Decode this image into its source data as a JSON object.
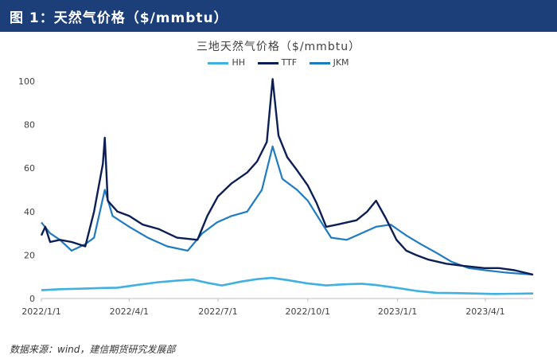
{
  "header": {
    "title": "图 1：天然气价格（$/mmbtu）"
  },
  "footer": {
    "source": "数据来源：wind，建信期货研究发展部"
  },
  "colors": {
    "header_bg": "#1d3f79",
    "HH": "#3fb0e0",
    "TTF": "#0c1f55",
    "JKM": "#1f7bc0"
  },
  "chart_data": {
    "type": "line",
    "title": "三地天然气价格（$/mmbtu）",
    "xlabel": "",
    "ylabel": "",
    "ylim": [
      0,
      100
    ],
    "yticks": [
      0,
      20,
      40,
      60,
      80,
      100
    ],
    "xlim": [
      "2022-01-01",
      "2023-05-20"
    ],
    "xticks": [
      "2022/1/1",
      "2022/4/1",
      "2022/7/1",
      "2022/10/1",
      "2023/1/1",
      "2023/4/1"
    ],
    "grid": false,
    "legend_position": "top-center",
    "series": [
      {
        "name": "HH",
        "points": [
          [
            "2022-01-01",
            3.8
          ],
          [
            "2022-01-20",
            4.3
          ],
          [
            "2022-02-10",
            4.5
          ],
          [
            "2022-03-01",
            4.8
          ],
          [
            "2022-03-20",
            5.0
          ],
          [
            "2022-04-10",
            6.3
          ],
          [
            "2022-05-01",
            7.5
          ],
          [
            "2022-05-20",
            8.2
          ],
          [
            "2022-06-05",
            8.7
          ],
          [
            "2022-06-20",
            7.2
          ],
          [
            "2022-07-05",
            6.0
          ],
          [
            "2022-07-25",
            7.8
          ],
          [
            "2022-08-10",
            8.9
          ],
          [
            "2022-08-25",
            9.5
          ],
          [
            "2022-09-10",
            8.5
          ],
          [
            "2022-09-30",
            7.0
          ],
          [
            "2022-10-20",
            6.0
          ],
          [
            "2022-11-05",
            6.5
          ],
          [
            "2022-11-25",
            6.8
          ],
          [
            "2022-12-10",
            6.2
          ],
          [
            "2022-12-30",
            5.0
          ],
          [
            "2023-01-20",
            3.5
          ],
          [
            "2023-02-10",
            2.6
          ],
          [
            "2023-03-01",
            2.5
          ],
          [
            "2023-03-20",
            2.3
          ],
          [
            "2023-04-10",
            2.1
          ],
          [
            "2023-05-01",
            2.2
          ],
          [
            "2023-05-20",
            2.3
          ]
        ]
      },
      {
        "name": "TTF",
        "points": [
          [
            "2022-01-01",
            29
          ],
          [
            "2022-01-05",
            33
          ],
          [
            "2022-01-10",
            26
          ],
          [
            "2022-01-20",
            27
          ],
          [
            "2022-02-01",
            26
          ],
          [
            "2022-02-15",
            24
          ],
          [
            "2022-02-24",
            40
          ],
          [
            "2022-03-05",
            62
          ],
          [
            "2022-03-07",
            74
          ],
          [
            "2022-03-10",
            45
          ],
          [
            "2022-03-20",
            40
          ],
          [
            "2022-04-01",
            38
          ],
          [
            "2022-04-15",
            34
          ],
          [
            "2022-05-01",
            32
          ],
          [
            "2022-05-20",
            28
          ],
          [
            "2022-06-10",
            27
          ],
          [
            "2022-06-20",
            38
          ],
          [
            "2022-07-01",
            47
          ],
          [
            "2022-07-15",
            53
          ],
          [
            "2022-07-31",
            58
          ],
          [
            "2022-08-10",
            63
          ],
          [
            "2022-08-20",
            72
          ],
          [
            "2022-08-26",
            101
          ],
          [
            "2022-09-01",
            75
          ],
          [
            "2022-09-10",
            65
          ],
          [
            "2022-09-20",
            59
          ],
          [
            "2022-10-01",
            52
          ],
          [
            "2022-10-10",
            44
          ],
          [
            "2022-10-20",
            33
          ],
          [
            "2022-10-31",
            34
          ],
          [
            "2022-11-10",
            35
          ],
          [
            "2022-11-20",
            36
          ],
          [
            "2022-12-01",
            40
          ],
          [
            "2022-12-10",
            45
          ],
          [
            "2022-12-20",
            37
          ],
          [
            "2022-12-31",
            27
          ],
          [
            "2023-01-10",
            22
          ],
          [
            "2023-01-20",
            20
          ],
          [
            "2023-02-01",
            18
          ],
          [
            "2023-02-20",
            16
          ],
          [
            "2023-03-10",
            15
          ],
          [
            "2023-03-31",
            14
          ],
          [
            "2023-04-15",
            14
          ],
          [
            "2023-05-01",
            13
          ],
          [
            "2023-05-20",
            11
          ]
        ]
      },
      {
        "name": "JKM",
        "points": [
          [
            "2022-01-01",
            35
          ],
          [
            "2022-01-10",
            30
          ],
          [
            "2022-01-20",
            27
          ],
          [
            "2022-02-01",
            22
          ],
          [
            "2022-02-15",
            25
          ],
          [
            "2022-02-24",
            28
          ],
          [
            "2022-03-07",
            50
          ],
          [
            "2022-03-15",
            38
          ],
          [
            "2022-04-01",
            33
          ],
          [
            "2022-04-20",
            28
          ],
          [
            "2022-05-10",
            24
          ],
          [
            "2022-05-31",
            22
          ],
          [
            "2022-06-15",
            30
          ],
          [
            "2022-06-30",
            35
          ],
          [
            "2022-07-15",
            38
          ],
          [
            "2022-07-31",
            40
          ],
          [
            "2022-08-15",
            50
          ],
          [
            "2022-08-26",
            70
          ],
          [
            "2022-09-05",
            55
          ],
          [
            "2022-09-20",
            50
          ],
          [
            "2022-10-01",
            45
          ],
          [
            "2022-10-15",
            35
          ],
          [
            "2022-10-25",
            28
          ],
          [
            "2022-11-10",
            27
          ],
          [
            "2022-11-25",
            30
          ],
          [
            "2022-12-10",
            33
          ],
          [
            "2022-12-25",
            34
          ],
          [
            "2023-01-10",
            29
          ],
          [
            "2023-01-25",
            25
          ],
          [
            "2023-02-10",
            21
          ],
          [
            "2023-02-25",
            17
          ],
          [
            "2023-03-15",
            14
          ],
          [
            "2023-04-01",
            13
          ],
          [
            "2023-04-20",
            12
          ],
          [
            "2023-05-20",
            11
          ]
        ]
      }
    ]
  }
}
